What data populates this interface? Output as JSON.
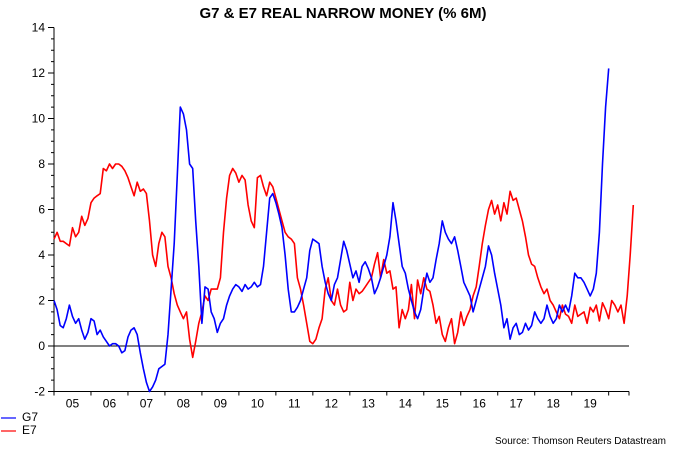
{
  "chart_data": {
    "type": "line",
    "title": "G7 & E7 REAL NARROW MONEY (% 6M)",
    "xlabel": "",
    "ylabel": "",
    "ylim": [
      -2,
      14
    ],
    "yticks": [
      -2,
      0,
      2,
      4,
      6,
      8,
      10,
      12,
      14
    ],
    "xlim": [
      2005.0,
      2020.55
    ],
    "xtick_labels": [
      "05",
      "06",
      "07",
      "08",
      "09",
      "10",
      "11",
      "12",
      "13",
      "14",
      "15",
      "16",
      "17",
      "18",
      "19"
    ],
    "xtick_years": [
      2005,
      2006,
      2007,
      2008,
      2009,
      2010,
      2011,
      2012,
      2013,
      2014,
      2015,
      2016,
      2017,
      2018,
      2019,
      2020
    ],
    "zero_line": true,
    "grid": false,
    "legend_position": "bottom-left",
    "source": "Source: Thomson Reuters Datastream",
    "x_start": 2005.0,
    "x_step": 0.0833333,
    "series": [
      {
        "name": "G7",
        "color": "#0000ff",
        "values": [
          2.0,
          1.6,
          0.9,
          0.8,
          1.2,
          1.8,
          1.3,
          1.0,
          1.2,
          0.7,
          0.3,
          0.6,
          1.2,
          1.1,
          0.5,
          0.7,
          0.4,
          0.2,
          0.0,
          0.1,
          0.1,
          0.0,
          -0.3,
          -0.2,
          0.4,
          0.7,
          0.8,
          0.5,
          -0.3,
          -1.0,
          -1.6,
          -2.0,
          -1.8,
          -1.5,
          -1.0,
          -0.9,
          -0.8,
          0.5,
          2.5,
          4.5,
          7.5,
          10.5,
          10.2,
          9.5,
          8.0,
          7.8,
          5.5,
          3.5,
          1.0,
          2.6,
          2.5,
          1.5,
          1.2,
          0.6,
          1.0,
          1.2,
          1.8,
          2.2,
          2.5,
          2.7,
          2.6,
          2.4,
          2.7,
          2.5,
          2.6,
          2.8,
          2.6,
          2.7,
          3.5,
          5.0,
          6.5,
          6.7,
          6.3,
          5.8,
          5.2,
          4.0,
          2.5,
          1.5,
          1.5,
          1.7,
          2.0,
          2.5,
          3.0,
          4.2,
          4.7,
          4.6,
          4.5,
          3.5,
          2.8,
          2.3,
          2.0,
          2.7,
          3.0,
          3.8,
          4.6,
          4.2,
          3.6,
          3.0,
          3.3,
          2.8,
          3.5,
          3.7,
          3.4,
          3.0,
          2.3,
          2.6,
          3.0,
          3.5,
          4.0,
          4.8,
          6.3,
          5.5,
          4.5,
          3.5,
          3.2,
          2.5,
          2.0,
          1.5,
          1.2,
          1.6,
          2.5,
          3.2,
          2.8,
          3.0,
          3.8,
          4.5,
          5.5,
          5.0,
          4.7,
          4.5,
          4.8,
          4.2,
          3.5,
          2.8,
          2.5,
          2.2,
          1.5,
          2.0,
          2.5,
          3.0,
          3.5,
          4.4,
          4.0,
          3.2,
          2.5,
          1.8,
          0.8,
          1.2,
          0.3,
          0.8,
          1.0,
          0.5,
          0.6,
          1.0,
          0.7,
          0.9,
          1.5,
          1.2,
          1.0,
          1.2,
          1.8,
          1.3,
          1.0,
          1.2,
          1.8,
          1.5,
          1.8,
          1.5,
          2.2,
          3.2,
          3.0,
          3.0,
          2.8,
          2.5,
          2.2,
          2.5,
          3.2,
          5.0,
          8.0,
          10.5,
          12.2
        ]
      },
      {
        "name": "E7",
        "color": "#ff0000",
        "values": [
          4.7,
          5.0,
          4.6,
          4.6,
          4.5,
          4.4,
          5.2,
          4.8,
          5.0,
          5.7,
          5.3,
          5.6,
          6.3,
          6.5,
          6.6,
          6.7,
          7.8,
          7.7,
          8.0,
          7.8,
          8.0,
          8.0,
          7.9,
          7.7,
          7.4,
          7.0,
          6.6,
          7.2,
          6.8,
          6.9,
          6.7,
          5.5,
          4.0,
          3.5,
          4.5,
          5.0,
          4.8,
          3.5,
          3.0,
          2.3,
          1.8,
          1.5,
          1.2,
          1.5,
          0.3,
          -0.5,
          0.2,
          1.0,
          1.5,
          2.2,
          2.0,
          2.5,
          2.5,
          2.5,
          3.0,
          5.0,
          6.5,
          7.5,
          7.8,
          7.6,
          7.2,
          7.5,
          7.3,
          6.2,
          5.5,
          5.2,
          7.4,
          7.5,
          7.0,
          6.6,
          7.2,
          7.0,
          6.5,
          6.0,
          5.5,
          5.0,
          4.8,
          4.7,
          4.5,
          3.0,
          2.5,
          1.8,
          1.0,
          0.2,
          0.1,
          0.3,
          0.8,
          1.2,
          2.5,
          3.0,
          2.0,
          1.8,
          2.5,
          1.8,
          1.5,
          1.6,
          2.8,
          2.0,
          2.5,
          2.3,
          2.4,
          2.6,
          2.8,
          3.0,
          3.6,
          4.1,
          3.0,
          3.8,
          3.2,
          3.3,
          2.5,
          2.6,
          0.8,
          1.6,
          1.2,
          1.6,
          2.7,
          1.2,
          2.9,
          2.3,
          3.0,
          2.5,
          2.4,
          1.8,
          1.0,
          1.3,
          0.5,
          0.2,
          0.8,
          1.2,
          0.1,
          0.6,
          1.5,
          0.9,
          1.3,
          1.6,
          2.2,
          2.6,
          3.5,
          4.5,
          5.3,
          6.0,
          6.4,
          5.8,
          6.2,
          5.5,
          6.3,
          5.8,
          6.8,
          6.4,
          6.5,
          6.0,
          5.5,
          4.8,
          4.0,
          3.6,
          3.5,
          3.0,
          2.6,
          2.3,
          2.5,
          2.0,
          1.8,
          1.5,
          1.2,
          1.8,
          1.4,
          1.3,
          1.0,
          1.8,
          1.3,
          1.4,
          1.5,
          1.0,
          1.7,
          1.5,
          1.8,
          1.1,
          1.9,
          1.6,
          1.2,
          2.0,
          1.8,
          1.5,
          1.8,
          1.0,
          2.2,
          4.0,
          6.2
        ]
      }
    ]
  }
}
